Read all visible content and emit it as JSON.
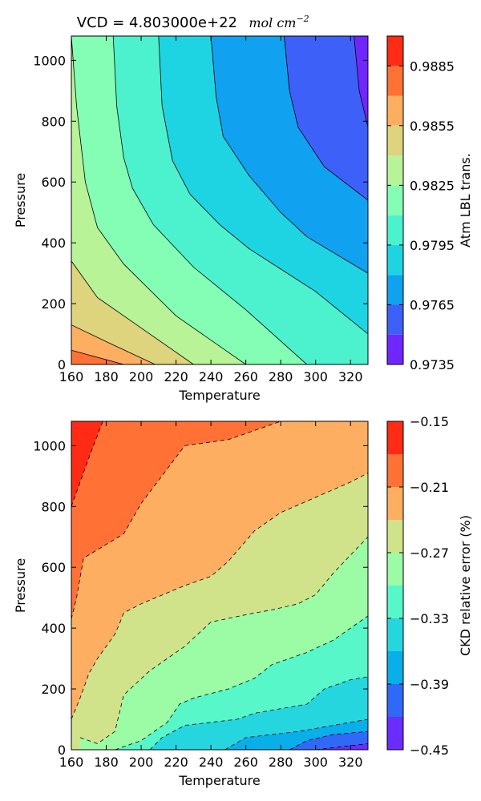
{
  "chart_data": [
    {
      "type": "contour",
      "title": "VCD = 4.803000e+22",
      "title_units": "mol cm",
      "title_units_exponent": "−2",
      "xlabel": "Temperature",
      "ylabel": "Pressure",
      "xlim": [
        160,
        330
      ],
      "ylim": [
        0,
        1080
      ],
      "xticks": [
        "160",
        "180",
        "200",
        "220",
        "240",
        "260",
        "280",
        "300",
        "320"
      ],
      "yticks": [
        "0",
        "200",
        "400",
        "600",
        "800",
        "1000"
      ],
      "line_style": "solid",
      "colorbar": {
        "label": "Atm LBL trans.",
        "levels": [
          0.9735,
          0.975,
          0.9765,
          0.978,
          0.9795,
          0.981,
          0.9825,
          0.984,
          0.9855,
          0.987,
          0.9885,
          0.99
        ],
        "tick_labels": [
          "0.9735",
          "0.9765",
          "0.9795",
          "0.9825",
          "0.9855",
          "0.9885"
        ],
        "band_colors": [
          "#7026ff",
          "#3d61f8",
          "#10a2f0",
          "#1fd4e2",
          "#4cf2ce",
          "#83feb4",
          "#b9f398",
          "#ddd47d",
          "#fdae61",
          "#ff7134",
          "#ff2b14"
        ]
      },
      "contours": [
        {
          "level": 0.987,
          "points": [
            [
              160,
              47
            ],
            [
              190,
              0
            ]
          ]
        },
        {
          "level": 0.9855,
          "points": [
            [
              160,
              130
            ],
            [
              180,
              75
            ],
            [
              208,
              0
            ]
          ]
        },
        {
          "level": 0.984,
          "points": [
            [
              160,
              340
            ],
            [
              175,
              220
            ],
            [
              200,
              120
            ],
            [
              230,
              0
            ]
          ]
        },
        {
          "level": 0.9825,
          "points": [
            [
              160,
              1080
            ],
            [
              163,
              850
            ],
            [
              168,
              600
            ],
            [
              175,
              450
            ],
            [
              190,
              330
            ],
            [
              220,
              160
            ],
            [
              260,
              0
            ]
          ]
        },
        {
          "level": 0.981,
          "points": [
            [
              184,
              1080
            ],
            [
              186,
              850
            ],
            [
              190,
              680
            ],
            [
              195,
              580
            ],
            [
              207,
              460
            ],
            [
              230,
              320
            ],
            [
              260,
              180
            ],
            [
              295,
              0
            ]
          ]
        },
        {
          "level": 0.9795,
          "points": [
            [
              210,
              1080
            ],
            [
              212,
              850
            ],
            [
              218,
              670
            ],
            [
              228,
              560
            ],
            [
              245,
              460
            ],
            [
              262,
              380
            ],
            [
              300,
              240
            ],
            [
              330,
              100
            ]
          ]
        },
        {
          "level": 0.978,
          "points": [
            [
              240,
              1080
            ],
            [
              243,
              880
            ],
            [
              247,
              750
            ],
            [
              262,
              620
            ],
            [
              280,
              500
            ],
            [
              295,
              420
            ],
            [
              330,
              300
            ]
          ]
        },
        {
          "level": 0.9765,
          "points": [
            [
              282,
              1080
            ],
            [
              285,
              900
            ],
            [
              290,
              780
            ],
            [
              305,
              650
            ],
            [
              330,
              540
            ]
          ]
        },
        {
          "level": 0.975,
          "points": [
            [
              322,
              1080
            ],
            [
              325,
              900
            ],
            [
              330,
              780
            ]
          ]
        }
      ]
    },
    {
      "type": "contour",
      "title": "",
      "xlabel": "Temperature",
      "ylabel": "Pressure",
      "xlim": [
        160,
        330
      ],
      "ylim": [
        0,
        1080
      ],
      "xticks": [
        "160",
        "180",
        "200",
        "220",
        "240",
        "260",
        "280",
        "300",
        "320"
      ],
      "yticks": [
        "0",
        "200",
        "400",
        "600",
        "800",
        "1000"
      ],
      "line_style": "dashed",
      "colorbar": {
        "label": "CKD relative error (%)",
        "levels": [
          -0.45,
          -0.42,
          -0.39,
          -0.36,
          -0.33,
          -0.3,
          -0.27,
          -0.24,
          -0.21,
          -0.18,
          -0.15
        ],
        "tick_labels": [
          "−0.15",
          "−0.21",
          "−0.27",
          "−0.33",
          "−0.39",
          "−0.45"
        ],
        "band_colors": [
          "#6a2dff",
          "#3068f8",
          "#0aaee9",
          "#26d6df",
          "#57f7c9",
          "#9cfca5",
          "#d0e38a",
          "#fdae61",
          "#ff7134",
          "#ff2b14"
        ]
      },
      "contours": [
        {
          "level": -0.18,
          "points": [
            [
              160,
              800
            ],
            [
              170,
              960
            ],
            [
              178,
              1080
            ]
          ]
        },
        {
          "level": -0.21,
          "points": [
            [
              160,
              430
            ],
            [
              163,
              500
            ],
            [
              167,
              630
            ],
            [
              190,
              710
            ],
            [
              200,
              810
            ],
            [
              225,
              1000
            ],
            [
              250,
              1020
            ],
            [
              265,
              1050
            ],
            [
              280,
              1080
            ]
          ]
        },
        {
          "level": -0.24,
          "points": [
            [
              160,
              100
            ],
            [
              165,
              170
            ],
            [
              170,
              250
            ],
            [
              175,
              300
            ],
            [
              185,
              380
            ],
            [
              188,
              420
            ],
            [
              190,
              450
            ],
            [
              200,
              480
            ],
            [
              225,
              540
            ],
            [
              240,
              570
            ],
            [
              250,
              620
            ],
            [
              265,
              720
            ],
            [
              280,
              780
            ],
            [
              300,
              830
            ],
            [
              320,
              880
            ],
            [
              330,
              910
            ]
          ]
        },
        {
          "level": -0.27,
          "points": [
            [
              165,
              40
            ],
            [
              175,
              20
            ],
            [
              185,
              60
            ],
            [
              190,
              180
            ],
            [
              205,
              260
            ],
            [
              225,
              340
            ],
            [
              240,
              420
            ],
            [
              265,
              450
            ],
            [
              275,
              460
            ],
            [
              290,
              480
            ],
            [
              300,
              510
            ],
            [
              310,
              580
            ],
            [
              320,
              640
            ],
            [
              330,
              700
            ]
          ]
        },
        {
          "level": -0.3,
          "points": [
            [
              185,
              0
            ],
            [
              200,
              30
            ],
            [
              215,
              90
            ],
            [
              222,
              150
            ],
            [
              230,
              170
            ],
            [
              250,
              200
            ],
            [
              265,
              235
            ],
            [
              275,
              280
            ],
            [
              295,
              320
            ],
            [
              310,
              360
            ],
            [
              330,
              440
            ]
          ]
        },
        {
          "level": -0.33,
          "points": [
            [
              205,
              0
            ],
            [
              212,
              40
            ],
            [
              225,
              80
            ],
            [
              255,
              100
            ],
            [
              265,
              120
            ],
            [
              295,
              150
            ],
            [
              305,
              200
            ],
            [
              320,
              230
            ],
            [
              330,
              240
            ]
          ]
        },
        {
          "level": -0.36,
          "points": [
            [
              248,
              0
            ],
            [
              260,
              40
            ],
            [
              290,
              60
            ],
            [
              310,
              80
            ],
            [
              330,
              100
            ]
          ]
        },
        {
          "level": -0.39,
          "points": [
            [
              285,
              0
            ],
            [
              295,
              30
            ],
            [
              310,
              50
            ],
            [
              330,
              60
            ]
          ]
        },
        {
          "level": -0.42,
          "points": [
            [
              300,
              0
            ],
            [
              315,
              10
            ],
            [
              330,
              20
            ]
          ]
        }
      ]
    }
  ]
}
